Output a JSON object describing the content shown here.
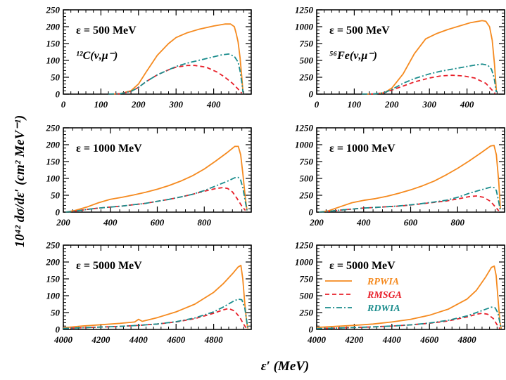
{
  "figure": {
    "ylabel": "10⁴² dσ/dε′ (cm² MeV⁻¹)",
    "xlabel": "ε′ (MeV)",
    "legend": [
      {
        "name": "RPWIA",
        "color": "#f58a1f",
        "dash": "solid"
      },
      {
        "name": "RMSGA",
        "color": "#e8202a",
        "dash": "dashed"
      },
      {
        "name": "RDWIA",
        "color": "#1a8c8c",
        "dash": "dashdot"
      }
    ]
  },
  "chart_data": [
    {
      "type": "line",
      "panel": "top-left",
      "energy_label": "ε = 500 MeV",
      "nucleus_label": "¹²C(ν,μ⁻)",
      "xlim": [
        0,
        500
      ],
      "ylim": [
        0,
        250
      ],
      "xticks": [
        0,
        100,
        200,
        300,
        400
      ],
      "yticks": [
        0,
        50,
        100,
        150,
        200,
        250
      ],
      "series": [
        {
          "name": "RPWIA",
          "x": [
            120,
            150,
            180,
            200,
            220,
            250,
            280,
            300,
            330,
            360,
            400,
            430,
            445,
            455,
            460,
            465,
            470,
            475,
            478
          ],
          "y": [
            0,
            1,
            10,
            30,
            65,
            115,
            150,
            168,
            182,
            192,
            202,
            208,
            208,
            200,
            180,
            155,
            110,
            50,
            5
          ]
        },
        {
          "name": "RMSGA",
          "x": [
            120,
            150,
            180,
            200,
            220,
            250,
            280,
            300,
            330,
            350,
            380,
            410,
            430,
            450,
            465,
            475
          ],
          "y": [
            0,
            1,
            8,
            20,
            37,
            57,
            72,
            80,
            85,
            85,
            80,
            65,
            50,
            32,
            15,
            3
          ]
        },
        {
          "name": "RDWIA",
          "x": [
            120,
            150,
            180,
            200,
            220,
            250,
            280,
            300,
            330,
            360,
            390,
            420,
            440,
            455,
            465,
            470,
            475,
            478
          ],
          "y": [
            0,
            1,
            8,
            20,
            37,
            57,
            72,
            82,
            92,
            100,
            108,
            116,
            119,
            112,
            95,
            70,
            35,
            5
          ]
        }
      ]
    },
    {
      "type": "line",
      "panel": "top-right",
      "energy_label": "ε = 500 MeV",
      "nucleus_label": "⁵⁶Fe(ν,μ⁻)",
      "xlim": [
        0,
        500
      ],
      "ylim": [
        0,
        1250
      ],
      "xticks": [
        0,
        100,
        200,
        300,
        400
      ],
      "yticks": [
        0,
        250,
        500,
        750,
        1000,
        1250
      ],
      "series": [
        {
          "name": "RPWIA",
          "x": [
            120,
            150,
            180,
            200,
            230,
            260,
            290,
            320,
            350,
            380,
            410,
            440,
            450,
            460,
            467,
            473,
            478
          ],
          "y": [
            0,
            2,
            20,
            90,
            300,
            600,
            820,
            900,
            960,
            1010,
            1060,
            1090,
            1080,
            1000,
            800,
            450,
            50
          ]
        },
        {
          "name": "RMSGA",
          "x": [
            120,
            150,
            180,
            200,
            230,
            260,
            300,
            330,
            360,
            390,
            420,
            450,
            465,
            475
          ],
          "y": [
            0,
            2,
            20,
            60,
            120,
            180,
            240,
            270,
            280,
            270,
            240,
            160,
            70,
            10
          ]
        },
        {
          "name": "RDWIA",
          "x": [
            120,
            150,
            180,
            200,
            230,
            260,
            300,
            330,
            360,
            390,
            420,
            440,
            455,
            465,
            472,
            478
          ],
          "y": [
            0,
            2,
            20,
            70,
            160,
            230,
            300,
            340,
            370,
            400,
            430,
            445,
            430,
            370,
            250,
            30
          ]
        }
      ]
    },
    {
      "type": "line",
      "panel": "middle-left",
      "energy_label": "ε = 1000 MeV",
      "xlim": [
        200,
        1000
      ],
      "ylim": [
        0,
        250
      ],
      "xticks": [
        200,
        400,
        600,
        800
      ],
      "yticks": [
        0,
        50,
        100,
        150,
        200,
        250
      ],
      "series": [
        {
          "name": "RPWIA",
          "x": [
            210,
            250,
            300,
            350,
            400,
            450,
            500,
            550,
            600,
            650,
            700,
            750,
            800,
            850,
            900,
            930,
            945,
            955,
            965,
            975,
            982
          ],
          "y": [
            0,
            5,
            15,
            28,
            38,
            44,
            51,
            59,
            68,
            79,
            92,
            108,
            128,
            152,
            178,
            195,
            195,
            170,
            110,
            40,
            5
          ]
        },
        {
          "name": "RMSGA",
          "x": [
            210,
            250,
            300,
            350,
            400,
            450,
            500,
            550,
            600,
            650,
            700,
            750,
            800,
            850,
            880,
            900,
            920,
            940,
            960,
            975
          ],
          "y": [
            0,
            3,
            8,
            12,
            15,
            18,
            22,
            26,
            32,
            38,
            45,
            53,
            62,
            70,
            73,
            70,
            60,
            40,
            18,
            5
          ]
        },
        {
          "name": "RDWIA",
          "x": [
            210,
            250,
            300,
            350,
            400,
            450,
            500,
            550,
            600,
            650,
            700,
            750,
            800,
            850,
            900,
            930,
            945,
            955,
            965,
            975,
            982
          ],
          "y": [
            0,
            3,
            8,
            12,
            15,
            18,
            22,
            26,
            32,
            38,
            45,
            53,
            64,
            78,
            92,
            102,
            103,
            95,
            70,
            30,
            5
          ]
        }
      ]
    },
    {
      "type": "line",
      "panel": "middle-right",
      "energy_label": "ε = 1000 MeV",
      "xlim": [
        200,
        1000
      ],
      "ylim": [
        0,
        1250
      ],
      "xticks": [
        200,
        400,
        600,
        800
      ],
      "yticks": [
        0,
        250,
        500,
        750,
        1000,
        1250
      ],
      "series": [
        {
          "name": "RPWIA",
          "x": [
            210,
            250,
            300,
            350,
            400,
            450,
            500,
            550,
            600,
            650,
            700,
            750,
            800,
            850,
            900,
            940,
            955,
            965,
            975,
            982
          ],
          "y": [
            0,
            20,
            80,
            140,
            175,
            200,
            235,
            280,
            330,
            390,
            460,
            550,
            650,
            760,
            880,
            980,
            990,
            850,
            450,
            50
          ]
        },
        {
          "name": "RMSGA",
          "x": [
            210,
            250,
            300,
            350,
            400,
            450,
            500,
            550,
            600,
            650,
            700,
            750,
            800,
            850,
            880,
            910,
            940,
            960,
            975
          ],
          "y": [
            0,
            10,
            30,
            45,
            60,
            70,
            80,
            90,
            105,
            125,
            145,
            165,
            195,
            230,
            240,
            220,
            160,
            80,
            20
          ]
        },
        {
          "name": "RDWIA",
          "x": [
            210,
            250,
            300,
            350,
            400,
            450,
            500,
            550,
            600,
            650,
            700,
            750,
            800,
            850,
            900,
            940,
            955,
            965,
            975,
            982
          ],
          "y": [
            0,
            10,
            30,
            45,
            60,
            70,
            80,
            92,
            108,
            128,
            150,
            175,
            220,
            280,
            330,
            370,
            365,
            320,
            150,
            20
          ]
        }
      ]
    },
    {
      "type": "line",
      "panel": "bottom-left",
      "energy_label": "ε = 5000 MeV",
      "xlim": [
        4000,
        5000
      ],
      "ylim": [
        0,
        250
      ],
      "xticks": [
        4000,
        4200,
        4400,
        4600,
        4800
      ],
      "yticks": [
        0,
        50,
        100,
        150,
        200,
        250
      ],
      "series": [
        {
          "name": "RPWIA",
          "x": [
            4000,
            4100,
            4200,
            4300,
            4380,
            4400,
            4420,
            4500,
            4600,
            4700,
            4800,
            4850,
            4900,
            4930,
            4945,
            4955,
            4965,
            4975,
            4982
          ],
          "y": [
            5,
            10,
            14,
            18,
            22,
            30,
            24,
            35,
            52,
            75,
            110,
            135,
            165,
            185,
            190,
            150,
            80,
            25,
            3
          ]
        },
        {
          "name": "RMSGA",
          "x": [
            4000,
            4100,
            4200,
            4300,
            4400,
            4500,
            4600,
            4700,
            4800,
            4850,
            4880,
            4910,
            4940,
            4960,
            4975
          ],
          "y": [
            3,
            5,
            7,
            9,
            12,
            16,
            22,
            32,
            48,
            58,
            62,
            55,
            35,
            15,
            3
          ]
        },
        {
          "name": "RDWIA",
          "x": [
            4000,
            4100,
            4200,
            4300,
            4400,
            4500,
            4600,
            4700,
            4800,
            4850,
            4900,
            4930,
            4950,
            4965,
            4975,
            4982
          ],
          "y": [
            3,
            5,
            7,
            9,
            12,
            16,
            23,
            34,
            52,
            66,
            82,
            90,
            88,
            65,
            30,
            3
          ]
        }
      ]
    },
    {
      "type": "line",
      "panel": "bottom-right",
      "energy_label": "ε = 5000 MeV",
      "xlim": [
        4000,
        5000
      ],
      "ylim": [
        0,
        1250
      ],
      "xticks": [
        4000,
        4200,
        4400,
        4600,
        4800
      ],
      "yticks": [
        0,
        250,
        500,
        750,
        1000,
        1250
      ],
      "series": [
        {
          "name": "RPWIA",
          "x": [
            4000,
            4100,
            4200,
            4300,
            4400,
            4500,
            4600,
            4700,
            4800,
            4850,
            4900,
            4930,
            4945,
            4955,
            4965,
            4975,
            4982
          ],
          "y": [
            30,
            45,
            60,
            80,
            110,
            150,
            210,
            300,
            450,
            580,
            780,
            920,
            940,
            800,
            450,
            120,
            10
          ]
        },
        {
          "name": "RMSGA",
          "x": [
            4000,
            4100,
            4200,
            4300,
            4400,
            4500,
            4600,
            4700,
            4800,
            4850,
            4880,
            4910,
            4940,
            4960,
            4975
          ],
          "y": [
            12,
            20,
            28,
            38,
            50,
            68,
            92,
            125,
            185,
            225,
            240,
            225,
            160,
            70,
            10
          ]
        },
        {
          "name": "RDWIA",
          "x": [
            4000,
            4100,
            4200,
            4300,
            4400,
            4500,
            4600,
            4700,
            4800,
            4850,
            4900,
            4930,
            4950,
            4965,
            4975,
            4982
          ],
          "y": [
            12,
            20,
            28,
            38,
            50,
            68,
            95,
            135,
            200,
            250,
            300,
            330,
            320,
            240,
            100,
            10
          ]
        }
      ]
    }
  ]
}
